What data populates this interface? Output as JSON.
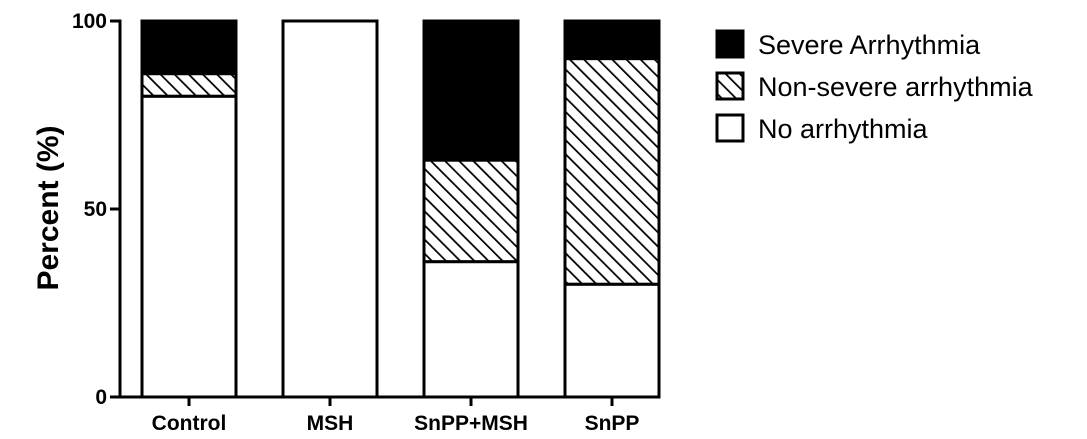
{
  "chart_data": {
    "type": "bar",
    "stacked": true,
    "categories": [
      "Control",
      "MSH",
      "SnPP+MSH",
      "SnPP"
    ],
    "series": [
      {
        "name": "No arrhythmia",
        "values": [
          80,
          100,
          36,
          30
        ],
        "fill": "white"
      },
      {
        "name": "Non-severe arrhythmia",
        "values": [
          6,
          0,
          27,
          60
        ],
        "fill": "hatch"
      },
      {
        "name": "Severe Arrhythmia",
        "values": [
          14,
          0,
          37,
          10
        ],
        "fill": "black"
      }
    ],
    "title": "",
    "xlabel": "",
    "ylabel": "Percent (%)",
    "ylim": [
      0,
      100
    ],
    "yticks": [
      0,
      50,
      100
    ],
    "grid": false,
    "legend_position": "top-right",
    "legend_order": [
      "Severe Arrhythmia",
      "Non-severe arrhythmia",
      "No arrhythmia"
    ],
    "colors": {
      "stroke": "#000000",
      "solid": "#000000",
      "empty": "#ffffff"
    }
  }
}
